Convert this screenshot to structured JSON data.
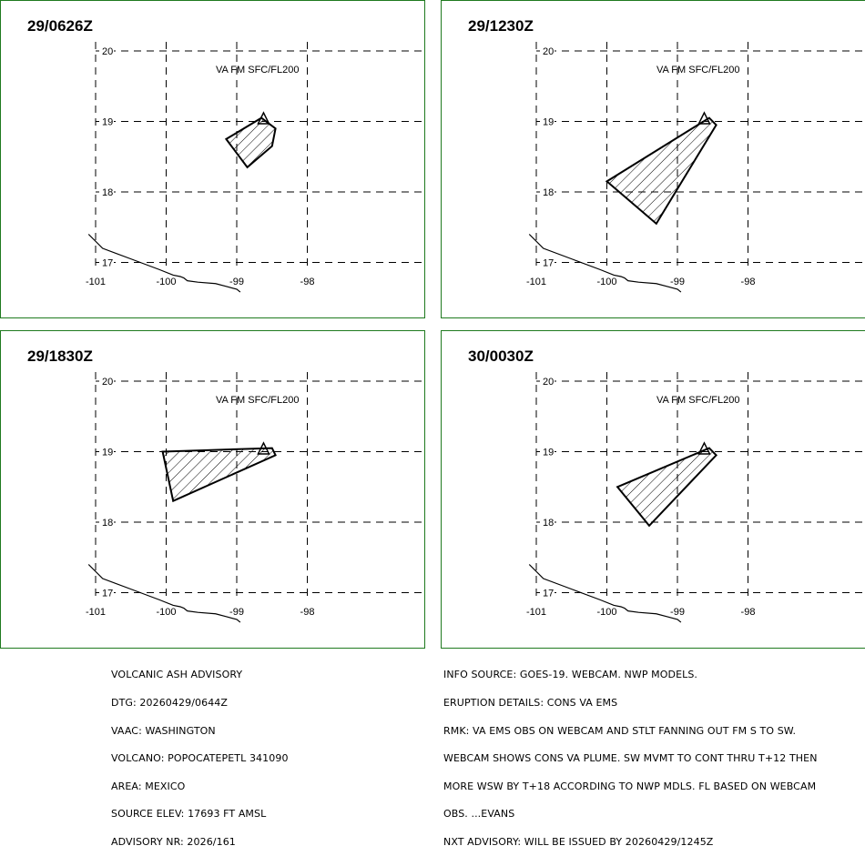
{
  "panels": [
    {
      "time": "29/0626Z",
      "va_label": "VA FM SFC/FL200",
      "lat_labels": [
        "20",
        "19",
        "18",
        "17"
      ],
      "lon_labels": [
        "-101",
        "-100",
        "-99",
        "-98"
      ],
      "ash_polygon": [
        [
          -99.15,
          18.75
        ],
        [
          -98.65,
          19.05
        ],
        [
          -98.45,
          18.9
        ],
        [
          -98.5,
          18.65
        ],
        [
          -98.85,
          18.35
        ]
      ]
    },
    {
      "time": "29/1230Z",
      "va_label": "VA FM SFC/FL200",
      "lat_labels": [
        "20",
        "19",
        "18",
        "17"
      ],
      "lon_labels": [
        "-101",
        "-100",
        "-99",
        "-98"
      ],
      "ash_polygon": [
        [
          -100.0,
          18.15
        ],
        [
          -98.55,
          19.05
        ],
        [
          -98.45,
          18.95
        ],
        [
          -99.3,
          17.55
        ]
      ]
    },
    {
      "time": "29/1830Z",
      "va_label": "VA FM SFC/FL200",
      "lat_labels": [
        "20",
        "19",
        "18",
        "17"
      ],
      "lon_labels": [
        "-101",
        "-100",
        "-99",
        "-98"
      ],
      "ash_polygon": [
        [
          -100.05,
          19.0
        ],
        [
          -98.5,
          19.05
        ],
        [
          -98.45,
          18.95
        ],
        [
          -99.9,
          18.3
        ]
      ]
    },
    {
      "time": "30/0030Z",
      "va_label": "VA FM SFC/FL200",
      "lat_labels": [
        "20",
        "19",
        "18",
        "17"
      ],
      "lon_labels": [
        "-101",
        "-100",
        "-99",
        "-98"
      ],
      "ash_polygon": [
        [
          -99.85,
          18.5
        ],
        [
          -98.55,
          19.05
        ],
        [
          -98.45,
          18.95
        ],
        [
          -99.4,
          17.95
        ]
      ]
    }
  ],
  "volcano_marker": {
    "lon": -98.62,
    "lat": 19.02,
    "symbol": "triangle"
  },
  "advisory_left": [
    "VOLCANIC ASH ADVISORY",
    "DTG: 20260429/0644Z",
    "VAAC: WASHINGTON",
    "VOLCANO: POPOCATEPETL 341090",
    "AREA: MEXICO",
    "SOURCE ELEV: 17693 FT AMSL",
    "ADVISORY NR: 2026/161"
  ],
  "advisory_right": [
    "INFO SOURCE: GOES-19. WEBCAM. NWP MODELS.",
    "ERUPTION DETAILS: CONS VA EMS",
    "RMK: VA EMS OBS ON WEBCAM AND STLT FANNING OUT FM S TO SW.",
    "WEBCAM SHOWS CONS VA PLUME. SW MVMT TO CONT THRU T+12 THEN",
    "MORE WSW BY T+18 ACCORDING TO NWP MDLS. FL BASED ON WEBCAM",
    "OBS. ...EVANS",
    "NXT ADVISORY: WILL BE ISSUED BY 20260429/1245Z"
  ],
  "colors": {
    "panel_border": "#1f7a1f",
    "lines": "#000000"
  }
}
